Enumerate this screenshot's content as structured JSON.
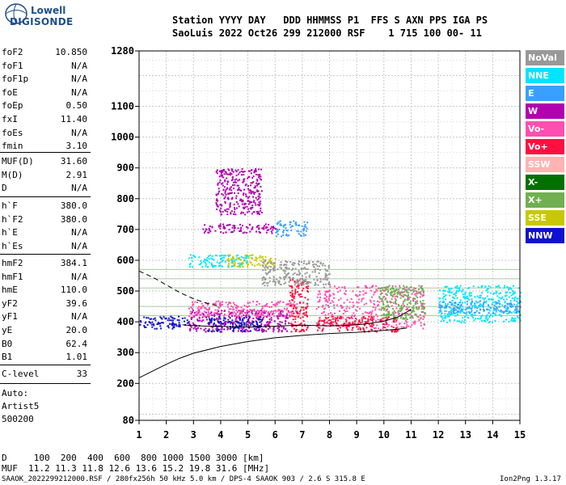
{
  "logo": {
    "line1": "Lowell",
    "line2": "DIGISONDE"
  },
  "header": {
    "row1": "Station YYYY DAY   DDD HHMMSS P1  FFS S AXN PPS IGA PS",
    "row2": "SaoLuis 2022 Oct26 299 212000 RSF    1 715 100 00- 11"
  },
  "params_group1": [
    {
      "name": "foF2",
      "value": "10.850"
    },
    {
      "name": "foF1",
      "value": "N/A"
    },
    {
      "name": "foF1p",
      "value": "N/A"
    },
    {
      "name": "foE",
      "value": "N/A"
    },
    {
      "name": "foEp",
      "value": "0.50"
    },
    {
      "name": "fxI",
      "value": "11.40"
    },
    {
      "name": "foEs",
      "value": "N/A"
    },
    {
      "name": "fmin",
      "value": "3.10"
    }
  ],
  "params_group2": [
    {
      "name": "MUF(D)",
      "value": "31.60"
    },
    {
      "name": "M(D)",
      "value": "2.91"
    },
    {
      "name": "D",
      "value": "N/A"
    }
  ],
  "params_group3": [
    {
      "name": "h`F",
      "value": "380.0"
    },
    {
      "name": "h`F2",
      "value": "380.0"
    },
    {
      "name": "h`E",
      "value": "N/A"
    },
    {
      "name": "h`Es",
      "value": "N/A"
    }
  ],
  "params_group4": [
    {
      "name": "hmF2",
      "value": "384.1"
    },
    {
      "name": "hmF1",
      "value": "N/A"
    },
    {
      "name": "hmE",
      "value": "110.0"
    },
    {
      "name": "yF2",
      "value": "39.6"
    },
    {
      "name": "yF1",
      "value": "N/A"
    },
    {
      "name": "yE",
      "value": "20.0"
    },
    {
      "name": "B0",
      "value": "62.4"
    },
    {
      "name": "B1",
      "value": "1.01"
    }
  ],
  "params_group5": [
    {
      "name": "C-level",
      "value": "33"
    }
  ],
  "auto": {
    "line1": "Auto:",
    "line2": "Artist5",
    "line3": "500200"
  },
  "legend": [
    {
      "label": "NoVal",
      "color": "#999999"
    },
    {
      "label": "NNE",
      "color": "#00e5ff"
    },
    {
      "label": "E",
      "color": "#3aa0ff"
    },
    {
      "label": "W",
      "color": "#b000b0"
    },
    {
      "label": "Vo-",
      "color": "#ff4fb0"
    },
    {
      "label": "Vo+",
      "color": "#ff1040"
    },
    {
      "label": "SSW",
      "color": "#ffb3b3"
    },
    {
      "label": "X-",
      "color": "#007000"
    },
    {
      "label": "X+",
      "color": "#70b050"
    },
    {
      "label": "SSE",
      "color": "#c8c800"
    },
    {
      "label": "NNW",
      "color": "#1010d0"
    }
  ],
  "bottom": {
    "d_row": "D     100  200  400  600  800 1000 1500 3000 [km]",
    "muf_row": "MUF  11.2 11.3 11.8 12.6 13.6 15.2 19.8 31.6 [MHz]"
  },
  "footer": {
    "left": "SAAOK_2022299212000.RSF / 280fx256h 50 kHz 5.0 km / DPS-4 SAAOK 903 / 2.6 S 315.8 E",
    "right": "Ion2Png 1.3.17"
  },
  "chart_data": {
    "type": "scatter",
    "x_ticks": [
      1,
      2,
      3,
      4,
      5,
      6,
      7,
      8,
      9,
      10,
      11,
      12,
      13,
      14,
      15
    ],
    "y_ticks": [
      80,
      200,
      300,
      400,
      500,
      600,
      700,
      800,
      900,
      1000,
      1100,
      1280
    ],
    "xlim": [
      1,
      15
    ],
    "ylim": [
      80,
      1280
    ],
    "grid": true,
    "echo_clusters": [
      {
        "x": [
          1.0,
          2.8
        ],
        "y": [
          380,
          420
        ],
        "color": "#1010d0"
      },
      {
        "x": [
          2.8,
          6.5
        ],
        "y": [
          370,
          440
        ],
        "color": "#b000b0"
      },
      {
        "x": [
          3.5,
          5.5
        ],
        "y": [
          370,
          420
        ],
        "color": "#1010d0"
      },
      {
        "x": [
          2.8,
          6.8
        ],
        "y": [
          420,
          470
        ],
        "color": "#ff4fb0"
      },
      {
        "x": [
          6.5,
          7.2
        ],
        "y": [
          370,
          540
        ],
        "color": "#ff1040"
      },
      {
        "x": [
          7.5,
          11.5
        ],
        "y": [
          380,
          520
        ],
        "color": "#ff4fb0"
      },
      {
        "x": [
          7.5,
          10.5
        ],
        "y": [
          370,
          420
        ],
        "color": "#ff1040"
      },
      {
        "x": [
          9.8,
          11.5
        ],
        "y": [
          410,
          520
        ],
        "color": "#70b050"
      },
      {
        "x": [
          12.0,
          15.0
        ],
        "y": [
          400,
          520
        ],
        "color": "#00e5ff"
      },
      {
        "x": [
          12.0,
          15.0
        ],
        "y": [
          430,
          470
        ],
        "color": "#3aa0ff"
      },
      {
        "x": [
          3.3,
          6.0
        ],
        "y": [
          690,
          720
        ],
        "color": "#b000b0"
      },
      {
        "x": [
          6.0,
          7.2
        ],
        "y": [
          680,
          730
        ],
        "color": "#3aa0ff"
      },
      {
        "x": [
          2.8,
          5.0
        ],
        "y": [
          580,
          620
        ],
        "color": "#00e5ff"
      },
      {
        "x": [
          4.2,
          6.0
        ],
        "y": [
          580,
          620
        ],
        "color": "#c8c800"
      },
      {
        "x": [
          5.5,
          8.0
        ],
        "y": [
          520,
          600
        ],
        "color": "#999999"
      },
      {
        "x": [
          3.8,
          5.5
        ],
        "y": [
          750,
          900
        ],
        "color": "#b000b0"
      }
    ],
    "virtual_height_trace": {
      "x": [
        2.6,
        3.0,
        3.5,
        4.0,
        4.5,
        5.0,
        5.5,
        6.0,
        6.5,
        7.0,
        7.5,
        8.0,
        8.5,
        9.0,
        9.5,
        10.0,
        10.5,
        11.0
      ],
      "y": [
        390,
        388,
        386,
        385,
        384,
        383,
        384,
        386,
        388,
        389,
        388,
        387,
        388,
        390,
        395,
        402,
        415,
        440
      ]
    },
    "dashed_trace": {
      "x": [
        1.0,
        1.5,
        2.0,
        2.5,
        3.0,
        3.5,
        4.0
      ],
      "y": [
        565,
        545,
        520,
        495,
        475,
        460,
        450
      ]
    },
    "true_height_profile": {
      "x": [
        1.0,
        1.5,
        2.0,
        2.5,
        3.0,
        4.0,
        5.0,
        6.0,
        7.0,
        8.0,
        9.0,
        10.0,
        10.5,
        10.85
      ],
      "y": [
        218,
        240,
        262,
        282,
        298,
        320,
        336,
        348,
        356,
        362,
        366,
        372,
        376,
        380
      ]
    }
  }
}
